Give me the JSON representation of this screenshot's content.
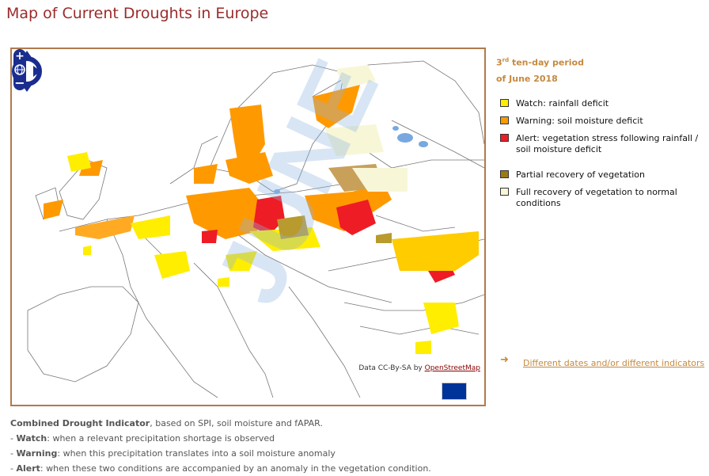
{
  "page_title": "Map of Current Droughts in Europe",
  "period": {
    "ordinal_number": "3",
    "ordinal_suffix": "rd",
    "line1_rest": " ten-day period",
    "line2": "of June 2018"
  },
  "legend": [
    {
      "id": "watch",
      "label": "Watch: rainfall deficit",
      "color": "#ffee00"
    },
    {
      "id": "warning",
      "label": "Warning: soil moisture deficit",
      "color": "#ff9900"
    },
    {
      "id": "alert",
      "label": "Alert: vegetation stress following rainfall / soil moisture deficit",
      "color": "#ee1c25"
    },
    {
      "id": "partial",
      "label": "Partial recovery of vegetation",
      "color": "#9c7a14"
    },
    {
      "id": "full",
      "label": "Full recovery of vegetation to normal conditions",
      "color": "#f7f7d8"
    }
  ],
  "map": {
    "attribution_prefix": "Data CC-By-SA by ",
    "attribution_link": "OpenStreetMap",
    "watermark": "JUNE"
  },
  "more_link": "Different dates and/or different indicators",
  "description": {
    "intro_bold": "Combined Drought Indicator",
    "intro_rest": ", based on SPI, soil moisture and fAPAR.",
    "items": [
      {
        "term": "Watch",
        "text": ": when a relevant precipitation shortage is observed"
      },
      {
        "term": "Warning",
        "text": ": when this precipitation translates into a soil moisture anomaly"
      },
      {
        "term": "Alert",
        "text": ": when these two conditions are accompanied by an anomaly in the vegetation condition."
      }
    ]
  }
}
